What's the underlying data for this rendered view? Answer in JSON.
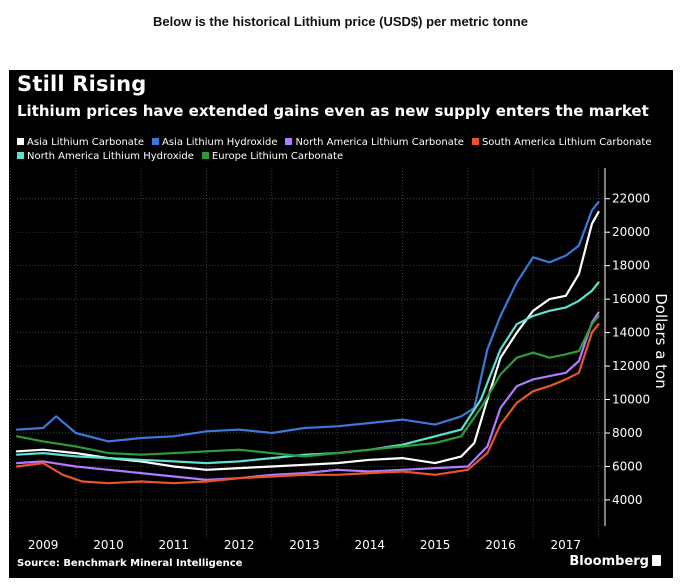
{
  "caption": "Below is the historical Lithium price (USD$) per metric tonne",
  "chart_data": {
    "type": "line",
    "title": "Still Rising",
    "subtitle": "Lithium prices have extended gains even as new supply enters the market",
    "ylabel": "Dollars a ton",
    "xlabel": "",
    "xlim": [
      2008.6,
      2017.6
    ],
    "ylim": [
      2800,
      23000
    ],
    "yticks": [
      4000,
      6000,
      8000,
      10000,
      12000,
      14000,
      16000,
      18000,
      20000,
      22000
    ],
    "x_tick_labels": [
      "2009",
      "2010",
      "2011",
      "2012",
      "2013",
      "2014",
      "2015",
      "2016",
      "2017"
    ],
    "source": "Source: Benchmark Mineral Intelligence",
    "brand": "Bloomberg",
    "series": [
      {
        "name": "Asia Lithium Carbonate",
        "color": "#ffffff",
        "x": [
          2008.6,
          2009.0,
          2009.5,
          2010.0,
          2010.5,
          2011.0,
          2011.5,
          2012.0,
          2012.5,
          2013.0,
          2013.5,
          2014.0,
          2014.5,
          2015.0,
          2015.4,
          2015.6,
          2015.8,
          2016.0,
          2016.25,
          2016.5,
          2016.75,
          2017.0,
          2017.2,
          2017.4,
          2017.5
        ],
        "values": [
          6900,
          7000,
          6800,
          6500,
          6300,
          6000,
          5800,
          5900,
          6000,
          6100,
          6200,
          6400,
          6500,
          6200,
          6600,
          7400,
          10000,
          12500,
          14000,
          15300,
          16000,
          16200,
          17500,
          20500,
          21200
        ]
      },
      {
        "name": "Asia Lithium Hydroxide",
        "color": "#3c78d8",
        "x": [
          2008.6,
          2009.0,
          2009.2,
          2009.5,
          2010.0,
          2010.5,
          2011.0,
          2011.5,
          2012.0,
          2012.5,
          2013.0,
          2013.5,
          2014.0,
          2014.5,
          2015.0,
          2015.4,
          2015.6,
          2015.8,
          2016.0,
          2016.25,
          2016.5,
          2016.75,
          2017.0,
          2017.2,
          2017.4,
          2017.5
        ],
        "values": [
          8200,
          8300,
          9000,
          8000,
          7500,
          7700,
          7800,
          8100,
          8200,
          8000,
          8300,
          8400,
          8600,
          8800,
          8500,
          9000,
          9500,
          13000,
          15000,
          17000,
          18500,
          18200,
          18600,
          19200,
          21300,
          21800
        ]
      },
      {
        "name": "North America Lithium Carbonate",
        "color": "#b07bff",
        "x": [
          2008.6,
          2009.0,
          2009.5,
          2010.0,
          2010.5,
          2011.0,
          2011.5,
          2012.0,
          2012.5,
          2013.0,
          2013.5,
          2014.0,
          2014.5,
          2015.0,
          2015.5,
          2015.8,
          2016.0,
          2016.25,
          2016.5,
          2016.75,
          2017.0,
          2017.2,
          2017.4,
          2017.5
        ],
        "values": [
          6200,
          6300,
          6000,
          5800,
          5600,
          5400,
          5200,
          5300,
          5500,
          5600,
          5800,
          5700,
          5800,
          5900,
          6000,
          7200,
          9500,
          10800,
          11200,
          11400,
          11600,
          12300,
          14600,
          15200
        ]
      },
      {
        "name": "South America Lithium Carbonate",
        "color": "#e8552a",
        "x": [
          2008.6,
          2009.0,
          2009.3,
          2009.6,
          2010.0,
          2010.5,
          2011.0,
          2011.5,
          2012.0,
          2012.5,
          2013.0,
          2013.5,
          2014.0,
          2014.5,
          2015.0,
          2015.5,
          2015.8,
          2016.0,
          2016.25,
          2016.5,
          2016.75,
          2017.0,
          2017.2,
          2017.4,
          2017.5
        ],
        "values": [
          6000,
          6200,
          5500,
          5100,
          5000,
          5100,
          5000,
          5100,
          5300,
          5400,
          5500,
          5500,
          5600,
          5700,
          5500,
          5800,
          6800,
          8500,
          9800,
          10500,
          10800,
          11200,
          11600,
          14000,
          14500
        ]
      },
      {
        "name": "North America Lithium Hydroxide",
        "color": "#5fe0d0",
        "x": [
          2008.6,
          2009.0,
          2009.5,
          2010.0,
          2010.5,
          2011.0,
          2011.5,
          2012.0,
          2012.5,
          2013.0,
          2013.5,
          2014.0,
          2014.5,
          2015.0,
          2015.4,
          2015.7,
          2016.0,
          2016.25,
          2016.5,
          2016.75,
          2017.0,
          2017.2,
          2017.4,
          2017.5
        ],
        "values": [
          6700,
          6800,
          6600,
          6500,
          6400,
          6300,
          6200,
          6300,
          6500,
          6700,
          6800,
          7000,
          7300,
          7800,
          8200,
          10000,
          13000,
          14500,
          15000,
          15300,
          15500,
          15900,
          16500,
          17000
        ]
      },
      {
        "name": "Europe Lithium Carbonate",
        "color": "#2e9a3a",
        "x": [
          2008.6,
          2009.0,
          2009.5,
          2010.0,
          2010.5,
          2011.0,
          2011.5,
          2012.0,
          2012.5,
          2013.0,
          2013.5,
          2014.0,
          2014.5,
          2015.0,
          2015.4,
          2015.7,
          2016.0,
          2016.25,
          2016.5,
          2016.75,
          2017.0,
          2017.2,
          2017.4,
          2017.5
        ],
        "values": [
          7800,
          7500,
          7200,
          6800,
          6700,
          6800,
          6900,
          7000,
          6800,
          6600,
          6800,
          7000,
          7200,
          7400,
          7800,
          9500,
          11500,
          12500,
          12800,
          12500,
          12700,
          12900,
          14500,
          15000
        ]
      }
    ]
  }
}
